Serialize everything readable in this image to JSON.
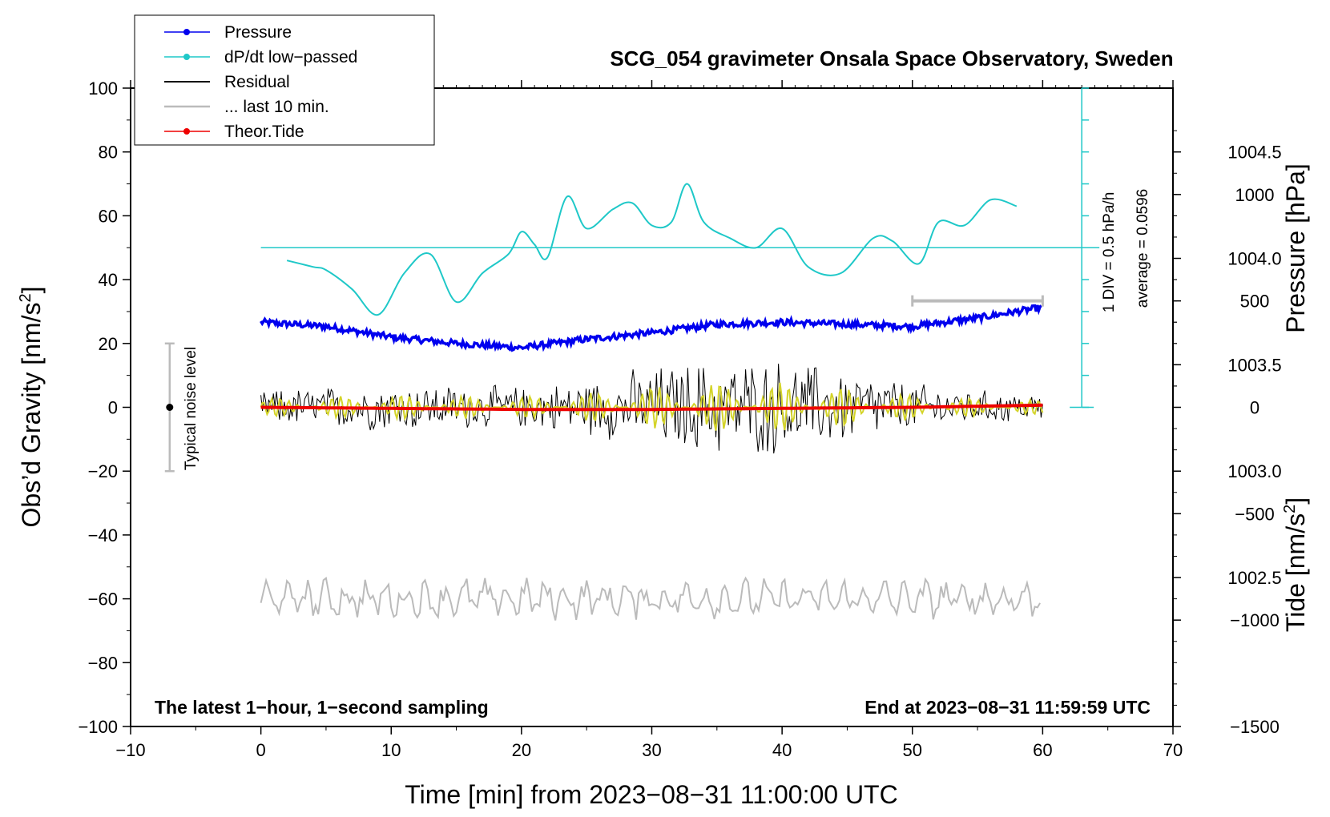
{
  "chart_data": {
    "type": "line",
    "title": "SCG_054 gravimeter Onsala Space Observatory, Sweden",
    "xlabel": "Time [min] from 2023−08−31 11:00:00 UTC",
    "ylabel_left_main": "Obs’d Gravity [nm/s",
    "ylabel_left_sup": "2",
    "ylabel_left_end": "]",
    "ylabel_right_pressure": "Pressure [hPa]",
    "ylabel_right_tide_main": "Tide [nm/s",
    "ylabel_right_tide_sup": "2",
    "ylabel_right_tide_end": "]",
    "xlim": [
      -10,
      70
    ],
    "ylim": [
      -100,
      100
    ],
    "x_ticks": [
      "−10",
      "0",
      "10",
      "20",
      "30",
      "40",
      "50",
      "60",
      "70"
    ],
    "y_ticks": [
      "−100",
      "−80",
      "−60",
      "−40",
      "−20",
      "0",
      "20",
      "40",
      "60",
      "80",
      "100"
    ],
    "pressure_ticks": [
      "1002.5",
      "1003.0",
      "1003.5",
      "1004.0",
      "1004.5"
    ],
    "tide_ticks": [
      "−1500",
      "−1000",
      "−500",
      "0",
      "500",
      "1000"
    ],
    "pressure_ylim": [
      1001.8,
      1004.8
    ],
    "tide_ylim": [
      -1500,
      1500
    ],
    "legend": [
      {
        "label": "Pressure",
        "color": "#0000ee",
        "marker": true
      },
      {
        "label": "dP/dt low−passed",
        "color": "#1fc8c8",
        "marker": true
      },
      {
        "label": "Residual",
        "color": "#000000",
        "marker": false
      },
      {
        "label": "... last 10 min.",
        "color": "#bbbbbb",
        "marker": false
      },
      {
        "label": "Theor.Tide",
        "color": "#ee0000",
        "marker": true
      }
    ],
    "series": [
      {
        "name": "Pressure",
        "axis": "pressure",
        "x": [
          0,
          5,
          10,
          15,
          20,
          25,
          30,
          35,
          40,
          45,
          50,
          55,
          60
        ],
        "y": [
          1003.7,
          1003.68,
          1003.63,
          1003.6,
          1003.58,
          1003.62,
          1003.65,
          1003.69,
          1003.7,
          1003.69,
          1003.68,
          1003.72,
          1003.77
        ]
      },
      {
        "name": "dP/dt low-passed",
        "axis": "gravity",
        "x": [
          2,
          4,
          5,
          7,
          9,
          11,
          13,
          15,
          17,
          19,
          20,
          21,
          22,
          23.5,
          25,
          27,
          28.5,
          30,
          31.5,
          32.7,
          34,
          36,
          38,
          40,
          42,
          44.5,
          47,
          48.5,
          50.5,
          52,
          54,
          56,
          58
        ],
        "y": [
          46,
          44,
          43,
          37,
          29,
          42,
          48,
          33,
          42,
          48,
          55,
          51,
          47,
          66,
          56,
          62,
          64,
          57,
          58,
          70,
          58,
          53,
          50,
          56,
          44,
          42,
          53,
          52,
          45,
          58,
          57,
          65,
          63
        ]
      },
      {
        "name": "Residual",
        "axis": "gravity",
        "x": [
          0,
          60
        ],
        "amplitude_envelope": {
          "x": [
            0,
            10,
            20,
            25,
            30,
            35,
            40,
            45,
            50,
            55,
            60
          ],
          "y": [
            5,
            7,
            6,
            8,
            12,
            14,
            14,
            11,
            7,
            5,
            4
          ]
        }
      },
      {
        "name": "... last 10 min.",
        "axis": "gravity",
        "x": [
          0,
          60
        ],
        "baseline": -60
      },
      {
        "name": "Theor.Tide",
        "axis": "tide",
        "x": [
          0,
          10,
          20,
          30,
          40,
          50,
          60
        ],
        "y": [
          0,
          -5,
          -10,
          -10,
          -5,
          0,
          10
        ]
      }
    ],
    "pressure_scale": {
      "label": "1 DIV = 0.5 hPa/h",
      "average": "average = 0.0596",
      "x": 63,
      "y_range": [
        0,
        100
      ],
      "zero_line_y": 50
    },
    "noise_bar": {
      "label": "Typical noise level",
      "x": -7,
      "y_center": 0,
      "y_range": [
        -20,
        20
      ]
    },
    "last10_bar": {
      "x_range": [
        50,
        60
      ],
      "tide_y": 500
    },
    "note_left": "The latest 1−hour, 1−second sampling",
    "note_right": "End at 2023−08−31 11:59:59 UTC",
    "colors": {
      "pressure": "#0000ee",
      "dpdt": "#1fc8c8",
      "residual": "#000000",
      "last10": "#bbbbbb",
      "tide": "#ee0000",
      "filtered": "#d4d42a"
    }
  }
}
